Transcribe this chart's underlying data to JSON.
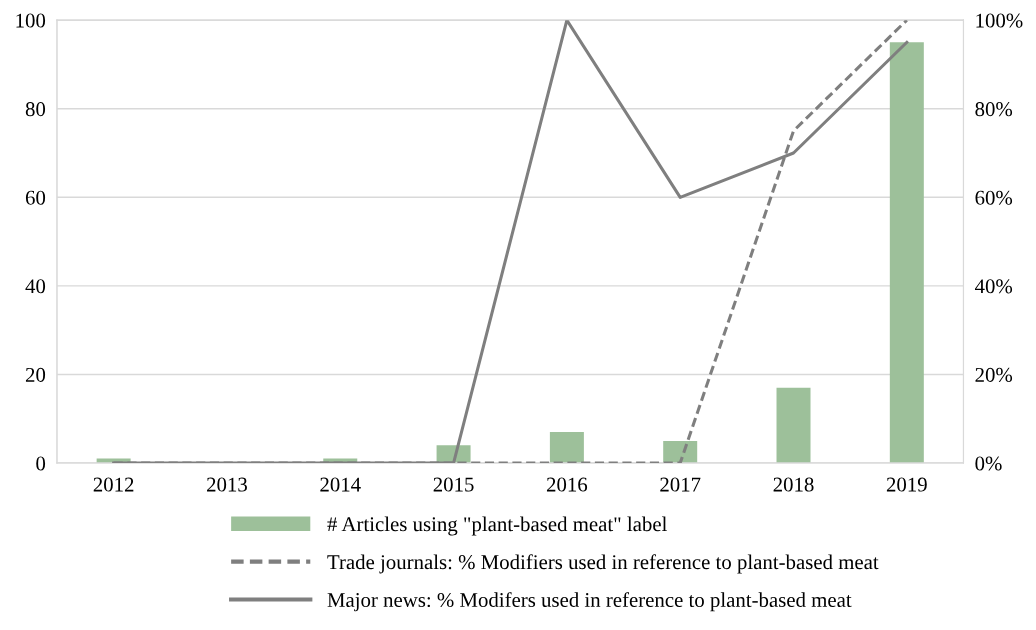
{
  "chart_data": {
    "type": "bar",
    "categories": [
      "2012",
      "2013",
      "2014",
      "2015",
      "2016",
      "2017",
      "2018",
      "2019"
    ],
    "series": [
      {
        "name": "# Articles using \"plant-based meat\" label",
        "color": "#9dc09a",
        "values": [
          1,
          0,
          1,
          4,
          7,
          5,
          17,
          95
        ]
      },
      {
        "name": "Trade journals: % Modifiers used in reference to plant-based meat",
        "type": "line",
        "axis": "y2",
        "line_style": "dashed",
        "color": "#7f7f7f",
        "values": [
          0,
          0,
          0,
          0,
          0,
          0,
          75,
          100
        ]
      },
      {
        "name": "Major news: % Modifers used in reference to plant-based meat",
        "type": "line",
        "axis": "y2",
        "line_style": "solid",
        "color": "#7f7f7f",
        "values": [
          0,
          0,
          0,
          0,
          100,
          60,
          70,
          95
        ]
      }
    ],
    "ylim": [
      0,
      100
    ],
    "yticks": [
      0,
      20,
      40,
      60,
      80,
      100
    ],
    "y2lim": [
      0,
      100
    ],
    "y2ticks": [
      {
        "value": 0,
        "label": "0%"
      },
      {
        "value": 20,
        "label": "20%"
      },
      {
        "value": 40,
        "label": "40%"
      },
      {
        "value": 60,
        "label": "60%"
      },
      {
        "value": 80,
        "label": "80%"
      },
      {
        "value": 100,
        "label": "100%"
      }
    ],
    "grid": "y",
    "legend": "bottom"
  }
}
